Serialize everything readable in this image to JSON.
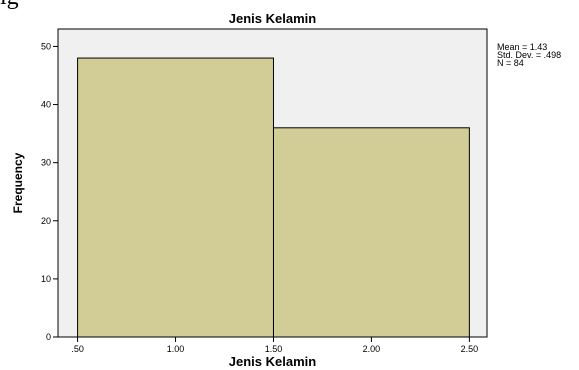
{
  "chart_data": {
    "type": "bar",
    "title": "Jenis Kelamin",
    "xlabel": "Jenis Kelamin",
    "ylabel": "Frequency",
    "bins": [
      {
        "start": 0.5,
        "end": 1.5,
        "value": 48
      },
      {
        "start": 1.5,
        "end": 2.5,
        "value": 36
      }
    ],
    "xticks": [
      ".50",
      "1.00",
      "1.50",
      "2.00",
      "2.50"
    ],
    "xtick_values": [
      0.5,
      1.0,
      1.5,
      2.0,
      2.5
    ],
    "yticks": [
      "0",
      "10",
      "20",
      "30",
      "40",
      "50"
    ],
    "ytick_values": [
      0,
      10,
      20,
      30,
      40,
      50
    ],
    "xlim": [
      0.4,
      2.59
    ],
    "ylim": [
      0,
      53
    ],
    "grid": false,
    "legend_position": "right",
    "stats": [
      "Mean = 1.43",
      "Std. Dev. = .498",
      "N = 84"
    ],
    "colors": {
      "bar_fill": "#d2cc96",
      "bar_stroke": "#000000",
      "plot_background": "#f0f0f0"
    }
  },
  "top_fragment": "ig"
}
